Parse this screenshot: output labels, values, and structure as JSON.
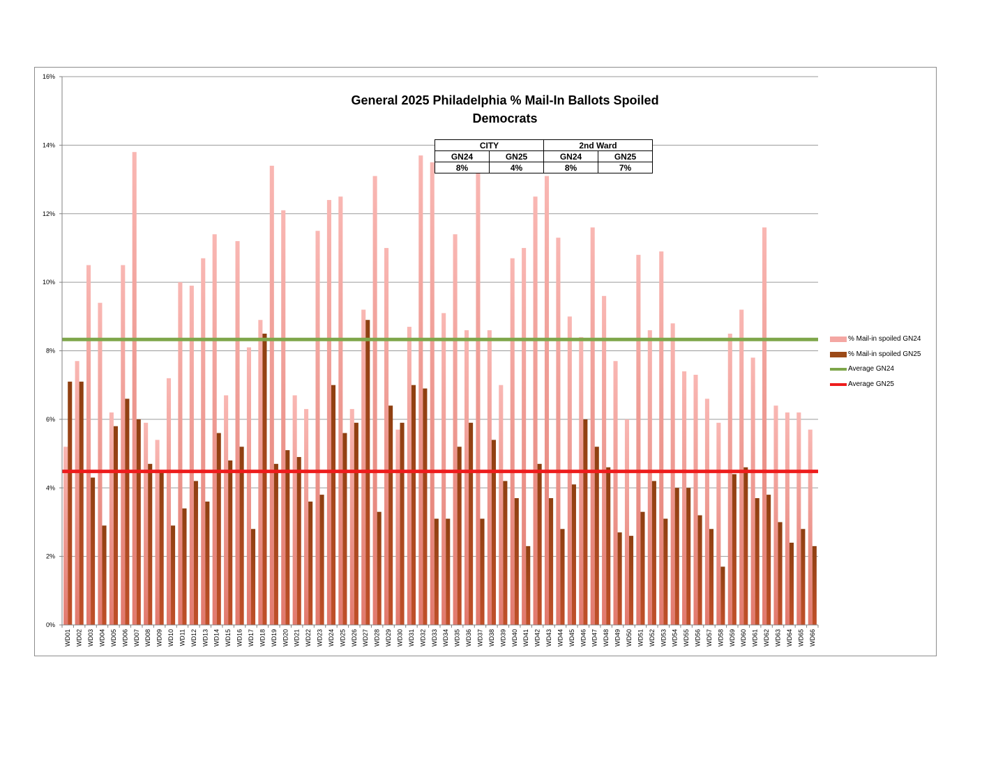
{
  "chart_data": {
    "type": "bar",
    "title": "General 2025 Philadelphia % Mail-In Ballots Spoiled",
    "subtitle": "Democrats",
    "categories": [
      "WD01",
      "WD02",
      "WD03",
      "WD04",
      "WD05",
      "WD06",
      "WD07",
      "WD08",
      "WD09",
      "WD10",
      "WD11",
      "WD12",
      "WD13",
      "WD14",
      "WD15",
      "WD16",
      "WD17",
      "WD18",
      "WD19",
      "WD20",
      "WD21",
      "WD22",
      "WD23",
      "WD24",
      "WD25",
      "WD26",
      "WD27",
      "WD28",
      "WD29",
      "WD30",
      "WD31",
      "WD32",
      "WD33",
      "WD34",
      "WD35",
      "WD36",
      "WD37",
      "WD38",
      "WD39",
      "WD40",
      "WD41",
      "WD42",
      "WD43",
      "WD44",
      "WD45",
      "WD46",
      "WD47",
      "WD48",
      "WD49",
      "WD50",
      "WD51",
      "WD52",
      "WD53",
      "WD54",
      "WD55",
      "WD56",
      "WD57",
      "WD58",
      "WD59",
      "WD60",
      "WD61",
      "WD62",
      "WD63",
      "WD64",
      "WD65",
      "WD66"
    ],
    "series": [
      {
        "name": "% Mail-in spoiled GN24",
        "color": "#f4a7a3",
        "values": [
          5.2,
          7.7,
          10.5,
          9.4,
          6.2,
          10.5,
          13.8,
          5.9,
          5.4,
          7.2,
          10.0,
          9.9,
          10.7,
          11.4,
          6.7,
          11.2,
          8.1,
          8.9,
          13.4,
          12.1,
          6.7,
          6.3,
          11.5,
          12.4,
          12.5,
          6.3,
          9.2,
          13.1,
          11.0,
          5.7,
          8.7,
          13.7,
          13.5,
          9.1,
          11.4,
          8.6,
          13.3,
          8.6,
          7.0,
          10.7,
          11.0,
          12.5,
          13.1,
          11.3,
          9.0,
          8.4,
          11.6,
          9.6,
          7.7,
          6.0,
          10.8,
          8.6,
          10.9,
          8.8,
          7.4,
          7.3,
          6.6,
          5.9,
          8.5,
          9.2,
          7.8,
          11.6,
          6.4,
          6.2,
          6.2,
          5.7
        ]
      },
      {
        "name": "% Mail-in spoiled GN25",
        "color": "#9c4a18",
        "values": [
          7.1,
          7.1,
          4.3,
          2.9,
          5.8,
          6.6,
          6.0,
          4.7,
          4.5,
          2.9,
          3.4,
          4.2,
          3.6,
          5.6,
          4.8,
          5.2,
          2.8,
          8.5,
          4.7,
          5.1,
          4.9,
          3.6,
          3.8,
          7.0,
          5.6,
          5.9,
          8.9,
          3.3,
          6.4,
          5.9,
          7.0,
          6.9,
          3.1,
          3.1,
          5.2,
          5.9,
          3.1,
          5.4,
          4.2,
          3.7,
          2.3,
          4.7,
          3.7,
          2.8,
          4.1,
          6.0,
          5.2,
          4.6,
          2.7,
          2.6,
          3.3,
          4.2,
          3.1,
          4.0,
          4.0,
          3.2,
          2.8,
          1.7,
          4.4,
          4.6,
          3.7,
          3.8,
          3.0,
          2.4,
          2.8,
          2.3
        ]
      }
    ],
    "averages": [
      {
        "name": "Average GN24",
        "value": 8.33,
        "color": "#7ea64a"
      },
      {
        "name": "Average GN25",
        "value": 4.48,
        "color": "#ee1c1c"
      }
    ],
    "ylim": [
      0,
      16
    ],
    "yticks": [
      0,
      2,
      4,
      6,
      8,
      10,
      12,
      14,
      16
    ],
    "ytick_labels": [
      "0%",
      "2%",
      "4%",
      "6%",
      "8%",
      "10%",
      "12%",
      "14%",
      "16%"
    ],
    "grid": true,
    "legend_position": "right"
  },
  "summary_table": {
    "group_city": "CITY",
    "group_ward": "2nd Ward",
    "col_labels": [
      "GN24",
      "GN25",
      "GN24",
      "GN25"
    ],
    "values": [
      "8%",
      "4%",
      "8%",
      "7%"
    ]
  },
  "legend": {
    "item1": "% Mail-in spoiled GN24",
    "item2": "% Mail-in spoiled GN25",
    "item3": "Average GN24",
    "item4": "Average GN25"
  }
}
